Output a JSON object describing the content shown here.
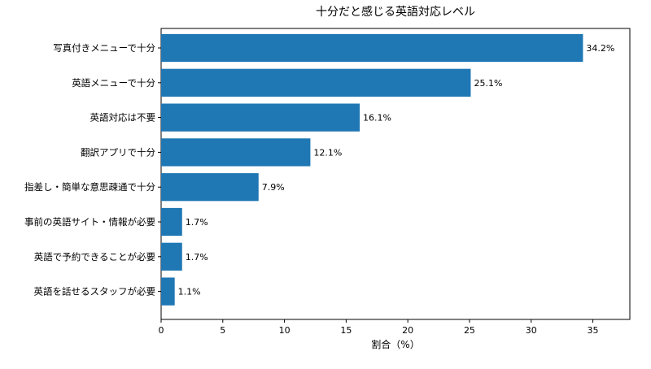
{
  "chart_data": {
    "type": "bar",
    "orientation": "horizontal",
    "title": "十分だと感じる英語対応レベル",
    "xlabel": "割合（%）",
    "ylabel": "",
    "xlim": [
      0,
      38
    ],
    "xticks": [
      0,
      5,
      10,
      15,
      20,
      25,
      30,
      35
    ],
    "grid": false,
    "legend": "none",
    "bar_color": "#1f77b4",
    "categories": [
      "写真付きメニューで十分",
      "英語メニューで十分",
      "英語対応は不要",
      "翻訳アプリで十分",
      "指差し・簡単な意思疎通で十分",
      "事前の英語サイト・情報が必要",
      "英語で予約できることが必要",
      "英語を話せるスタッフが必要"
    ],
    "values": [
      34.2,
      25.1,
      16.1,
      12.1,
      7.9,
      1.7,
      1.7,
      1.1
    ],
    "value_labels": [
      "34.2%",
      "25.1%",
      "16.1%",
      "12.1%",
      "7.9%",
      "1.7%",
      "1.7%",
      "1.1%"
    ]
  }
}
